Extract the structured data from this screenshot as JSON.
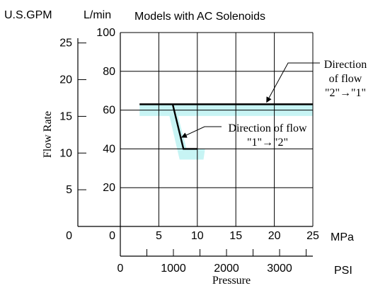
{
  "chart_data": {
    "type": "line",
    "title": "Models with AC Solenoids",
    "ylabel": "Flow Rate",
    "xlabel": "Pressure",
    "x_unit_primary": "MPa",
    "x_unit_secondary": "PSI",
    "y_unit_primary": "L/min",
    "y_unit_secondary": "U.S.GPM",
    "xlim": [
      0,
      25
    ],
    "ylim": [
      0,
      100
    ],
    "x_ticks": [
      0,
      5,
      10,
      15,
      20,
      25
    ],
    "x_tick_labels": [
      "0",
      "5",
      "10",
      "15",
      "20",
      "25"
    ],
    "y_ticks": [
      20,
      40,
      60,
      80,
      100
    ],
    "y_tick_labels": [
      "20",
      "40",
      "60",
      "80",
      "100"
    ],
    "origin_label": "0",
    "y_secondary_ticks": [
      5,
      10,
      15,
      20,
      25
    ],
    "y_secondary_tick_labels": [
      "5",
      "10",
      "15",
      "20",
      "25"
    ],
    "y_secondary_origin_label": "0",
    "x_secondary_ticks": [
      0,
      1000,
      2000,
      3000
    ],
    "x_secondary_tick_labels": [
      "0",
      "1000",
      "2000",
      "3000"
    ],
    "grid": true,
    "series": [
      {
        "name": "Direction of flow \"2\"→\"1\"",
        "x": [
          2.5,
          25
        ],
        "y": [
          63,
          63
        ],
        "color": "#000000"
      },
      {
        "name": "Direction of flow \"1\"→\"2\"",
        "x": [
          6.8,
          8.2,
          10
        ],
        "y": [
          63,
          40,
          40
        ],
        "color": "#000000"
      }
    ],
    "tolerance_band_color": "#c7f4f4",
    "annotations": [
      {
        "series": 0,
        "lines": [
          "Direction",
          "of flow",
          "\"2\"→\"1\""
        ],
        "arrow_to": [
          19,
          63
        ]
      },
      {
        "series": 1,
        "lines": [
          "Direction of flow",
          "\"1\"→\"2\""
        ],
        "arrow_to": [
          7.8,
          46
        ]
      }
    ]
  }
}
